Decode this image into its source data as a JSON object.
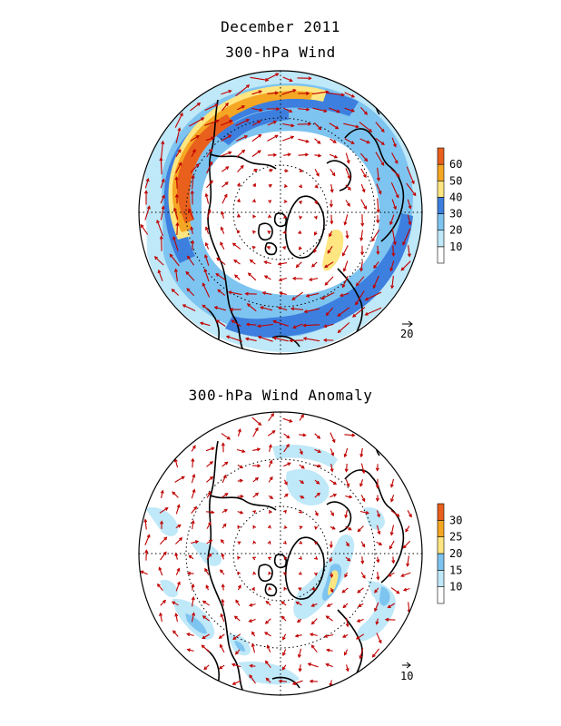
{
  "titles": {
    "main": "December 2011",
    "top_map": "300-hPa Wind",
    "bottom_map": "300-hPa Wind Anomaly"
  },
  "maps": [
    {
      "name": "wind",
      "projection": "north-polar-stereographic",
      "reference_vector_label": "20",
      "colorbar": {
        "levels": [
          "10",
          "20",
          "30",
          "40",
          "50",
          "60"
        ],
        "colors": [
          "#ffffff",
          "#bfe8f8",
          "#7ec4f0",
          "#3d7fde",
          "#ffe680",
          "#f5a623",
          "#e8601c"
        ]
      }
    },
    {
      "name": "anomaly",
      "projection": "north-polar-stereographic",
      "reference_vector_label": "10",
      "colorbar": {
        "levels": [
          "10",
          "15",
          "20",
          "25",
          "30"
        ],
        "colors": [
          "#ffffff",
          "#bfe8f8",
          "#7ec4f0",
          "#ffe680",
          "#f5a623",
          "#e8601c"
        ]
      }
    }
  ],
  "style": {
    "vector_color": "#c00000",
    "coastline_color": "#000000"
  }
}
